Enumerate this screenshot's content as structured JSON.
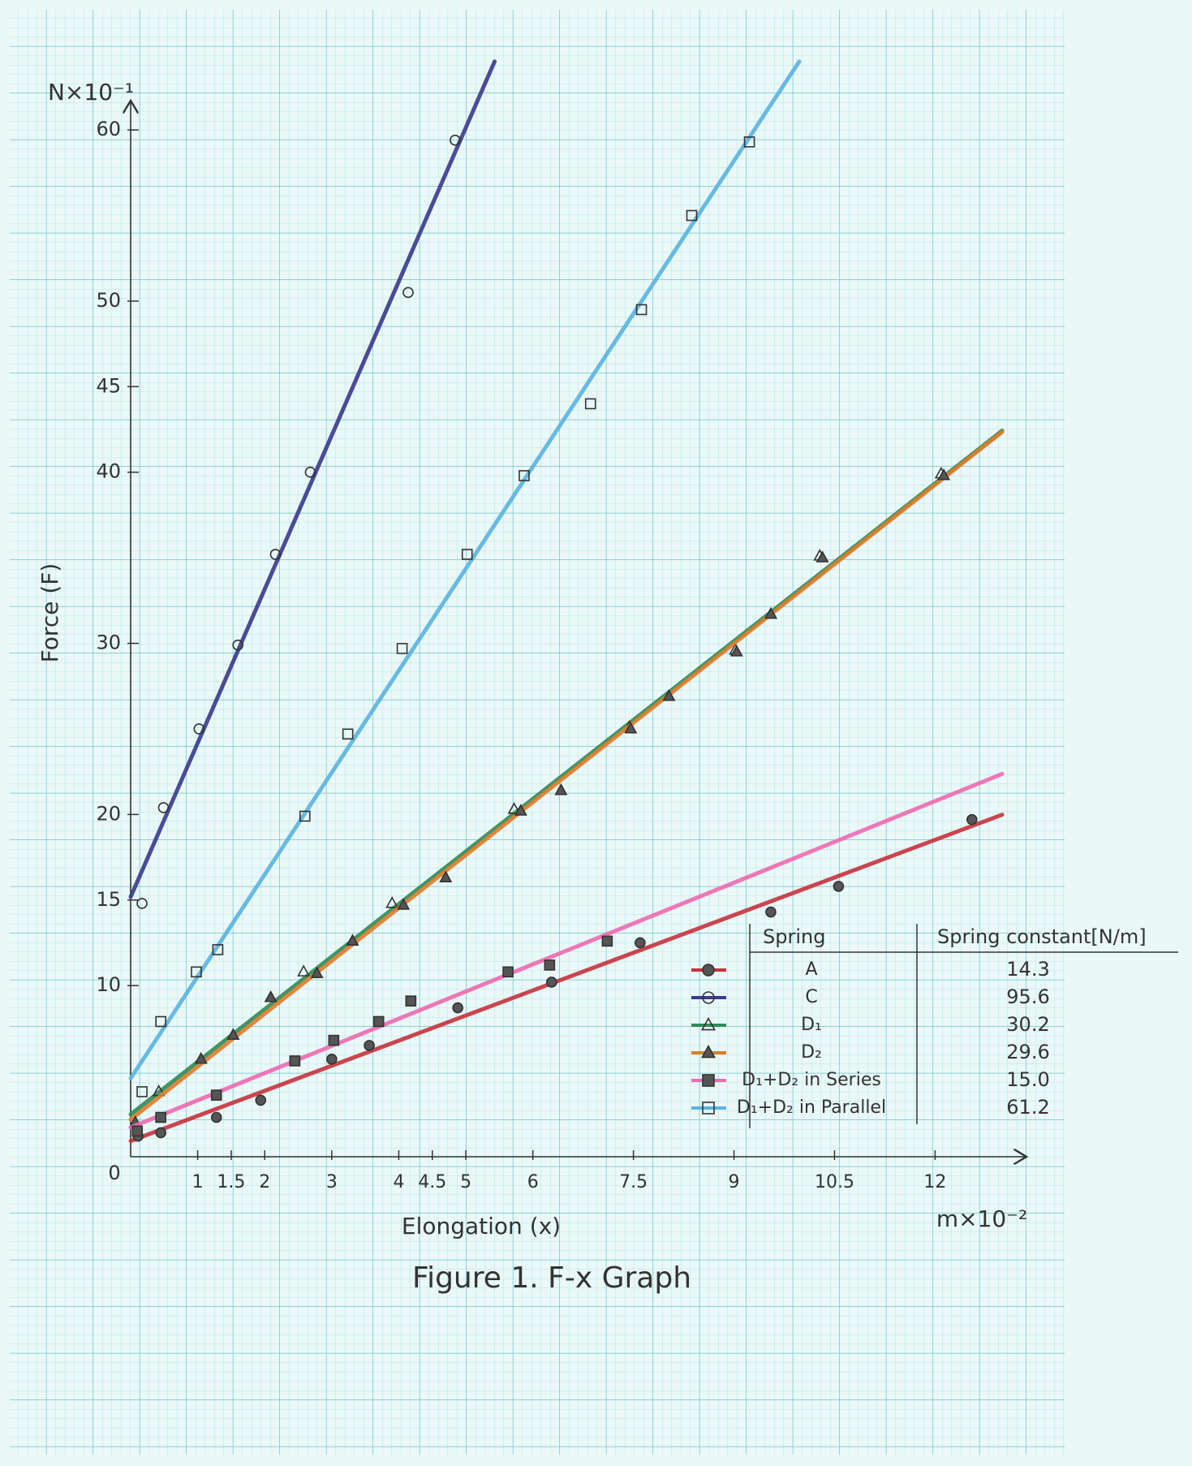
{
  "chart_data": {
    "type": "scatter",
    "title": "Figure 1. F-x Graph",
    "x_label": "Elongation (x)",
    "x_unit": "m×10⁻²",
    "y_label": "Force (F)",
    "y_unit": "N×10⁻¹",
    "origin_label": "0",
    "xlim": [
      0,
      13
    ],
    "ylim": [
      0,
      61
    ],
    "xticks": [
      1,
      1.5,
      2,
      3,
      4,
      4.5,
      5,
      6,
      7.5,
      9,
      10.5,
      12
    ],
    "yticks": [
      10,
      15,
      20,
      30,
      40,
      45,
      50,
      60
    ],
    "legend_header": [
      "Spring",
      "Spring constant[N/m]"
    ],
    "series": [
      {
        "name": "A",
        "constant": "14.3",
        "color": "#c8323c",
        "marker": "circle",
        "filled": true,
        "x": [
          0.11,
          0.45,
          1.28,
          1.94,
          3.0,
          3.56,
          4.88,
          6.28,
          7.6,
          9.55,
          10.56,
          12.55
        ],
        "y": [
          1.2,
          1.4,
          2.3,
          3.3,
          5.7,
          6.5,
          8.7,
          10.2,
          12.5,
          14.3,
          15.8,
          19.7
        ]
      },
      {
        "name": "C",
        "constant": "95.6",
        "color": "#3a3a8c",
        "marker": "circle",
        "filled": false,
        "x": [
          0.17,
          0.49,
          1.02,
          1.6,
          2.16,
          2.68,
          4.14,
          4.84
        ],
        "y": [
          14.8,
          20.4,
          25.0,
          29.9,
          35.2,
          40.0,
          50.5,
          59.4
        ]
      },
      {
        "name": "D₁",
        "constant": "30.2",
        "color": "#2e8b57",
        "marker": "triangle",
        "filled": false,
        "x": [
          0.42,
          1.05,
          1.53,
          2.09,
          2.58,
          3.31,
          3.9,
          4.7,
          5.72,
          6.42,
          7.44,
          8.03,
          9.02,
          9.55,
          10.28,
          12.09
        ],
        "y": [
          3.8,
          5.7,
          7.1,
          9.3,
          10.8,
          12.6,
          14.8,
          16.3,
          20.3,
          21.4,
          25.1,
          26.9,
          29.6,
          31.7,
          35.1,
          39.9
        ]
      },
      {
        "name": "D₂",
        "constant": "29.6",
        "color": "#e07b2a",
        "marker": "triangle",
        "filled": true,
        "x": [
          0.07,
          1.05,
          1.53,
          2.09,
          2.78,
          3.31,
          4.07,
          4.7,
          5.82,
          6.42,
          7.46,
          8.03,
          9.04,
          9.55,
          10.32,
          12.13
        ],
        "y": [
          2.0,
          5.7,
          7.1,
          9.3,
          10.7,
          12.6,
          14.7,
          16.3,
          20.2,
          21.4,
          25.0,
          26.9,
          29.5,
          31.7,
          35.0,
          39.8
        ]
      },
      {
        "name": "D₁+D₂ in Series",
        "constant": "15.0",
        "color": "#f06ab0",
        "marker": "square",
        "filled": true,
        "x": [
          0.1,
          0.45,
          1.28,
          2.45,
          3.03,
          3.7,
          4.18,
          5.63,
          6.25,
          7.11
        ],
        "y": [
          1.5,
          2.3,
          3.6,
          5.6,
          6.8,
          7.9,
          9.1,
          10.8,
          11.2,
          12.6
        ]
      },
      {
        "name": "D₁+D₂ in Parallel",
        "constant": "61.2",
        "color": "#5ab4e0",
        "marker": "square",
        "filled": false,
        "x": [
          0.17,
          0.45,
          0.98,
          1.3,
          2.6,
          3.24,
          4.05,
          5.02,
          5.87,
          6.86,
          7.62,
          8.37,
          9.23
        ],
        "y": [
          3.8,
          7.9,
          10.8,
          12.1,
          19.9,
          24.7,
          29.7,
          35.2,
          39.8,
          44.0,
          49.5,
          55.0,
          59.3
        ]
      }
    ]
  }
}
